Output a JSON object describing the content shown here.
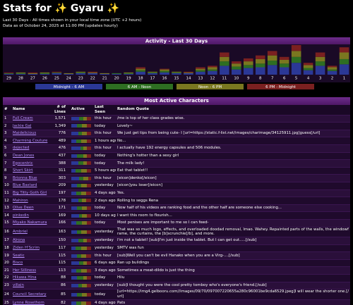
{
  "header": {
    "title": "Stats for ✨ Gyaru ✨",
    "subtitle": [
      "Last 30 Days - All times shown in your local time zone (UTC +2 hours)",
      "Data as of October 24, 2025 at 11:00 PM (updates hourly)"
    ]
  },
  "chart_data": {
    "type": "bar",
    "stacked": true,
    "title": "Activity - Last 30 Days",
    "categories": [
      "29",
      "28",
      "27",
      "26",
      "25",
      "24",
      "23",
      "22",
      "21",
      "20",
      "19",
      "18",
      "17",
      "16",
      "15",
      "14",
      "13",
      "12",
      "11",
      "10",
      "9",
      "8",
      "7",
      "6",
      "5",
      "4",
      "3",
      "2",
      "1"
    ],
    "series": [
      {
        "name": "Midnight - 6 AM",
        "color": "#2b3896",
        "values": [
          1,
          1,
          1,
          1,
          2,
          1,
          2,
          2,
          1,
          1,
          1,
          4,
          2,
          3,
          2,
          2,
          4,
          5,
          12,
          7,
          9,
          10,
          13,
          10,
          16,
          6,
          12,
          5,
          14
        ]
      },
      {
        "name": "6 AM - Noon",
        "color": "#2e6e22",
        "values": [
          1,
          1,
          0,
          1,
          1,
          0,
          1,
          0,
          0,
          1,
          1,
          2,
          1,
          2,
          1,
          0,
          2,
          2,
          6,
          4,
          4,
          5,
          6,
          5,
          8,
          3,
          6,
          2,
          7
        ]
      },
      {
        "name": "Noon - 6 PM",
        "color": "#7a7720",
        "values": [
          0,
          1,
          1,
          1,
          0,
          1,
          1,
          1,
          1,
          0,
          1,
          2,
          1,
          2,
          1,
          1,
          2,
          3,
          6,
          4,
          5,
          6,
          7,
          5,
          8,
          4,
          6,
          3,
          9
        ]
      },
      {
        "name": "6 PM - Midnight",
        "color": "#7a2020",
        "values": [
          1,
          0,
          1,
          0,
          1,
          0,
          0,
          1,
          0,
          0,
          0,
          2,
          0,
          1,
          0,
          1,
          2,
          2,
          6,
          3,
          4,
          5,
          6,
          4,
          8,
          3,
          6,
          2,
          7
        ]
      }
    ]
  },
  "table": {
    "title": "Most Active Characters",
    "columns": [
      "#",
      "Name",
      "# of Lines",
      "Active",
      "Last Seen",
      "Random Quote"
    ],
    "rows": [
      [
        "1",
        "Full Cream",
        "1,571",
        [
          40,
          20,
          20,
          20
        ],
        "this hour",
        "/me is top of her class grades wise."
      ],
      [
        "2",
        "Jackie Gal",
        "1,349",
        [
          30,
          25,
          25,
          20
        ],
        "today",
        "Lovely~"
      ],
      [
        "3",
        "Maidelicious",
        "776",
        [
          35,
          20,
          25,
          20
        ],
        "this hour",
        "We just get tips from being cute- I [url=https://static.f-list.net/images/charimage/34125911.jpg]guess[/url]"
      ],
      [
        "4",
        "Charming Couture",
        "489",
        [
          25,
          25,
          30,
          20
        ],
        "1 hours ago",
        "No..."
      ],
      [
        "5",
        "dejected",
        "476",
        [
          45,
          15,
          20,
          20
        ],
        "this hour",
        "I actually have 192 energy capsules and 506 modules."
      ],
      [
        "6",
        "Dean Jones",
        "437",
        [
          30,
          30,
          20,
          20
        ],
        "today",
        "Nothing's hotter than a sexy girl"
      ],
      [
        "7",
        "Egocentric",
        "388",
        [
          35,
          25,
          20,
          20
        ],
        "today",
        "The milk lady!"
      ],
      [
        "8",
        "Short Skirt",
        "311",
        [
          20,
          30,
          30,
          20
        ],
        "5 hours ago",
        "Eat that tablet!!"
      ],
      [
        "9",
        "Brionna Blue",
        "303",
        [
          40,
          20,
          25,
          15
        ],
        "this hour",
        "[eicon]denko[/eicon]"
      ],
      [
        "10",
        "Blue Bastard",
        "209",
        [
          30,
          20,
          30,
          20
        ],
        "yesterday",
        "[eicon]you loser[/eicon]"
      ],
      [
        "11",
        "Big Titty Goth Girl",
        "197",
        [
          25,
          25,
          25,
          25
        ],
        "4 days ago",
        "Yes."
      ],
      [
        "12",
        "Mahiron",
        "178",
        [
          35,
          20,
          20,
          25
        ],
        "2 days ago",
        "Rolling to seggs Rena"
      ],
      [
        "13",
        "Olive Deen",
        "171",
        [
          30,
          25,
          25,
          20
        ],
        "today",
        "Now half of his videos are ranking food and the other half are someone else cooking..."
      ],
      [
        "14",
        "pinkedin",
        "169",
        [
          40,
          15,
          25,
          20
        ],
        "10 days ago",
        "I want this room to flourish..."
      ],
      [
        "15",
        "Miyako Nakamura",
        "166",
        [
          25,
          30,
          25,
          20
        ],
        "today",
        "Most penises are important to me so I can feed-"
      ],
      [
        "16",
        "Ambriel",
        "163",
        [
          30,
          20,
          30,
          20
        ],
        "yesterday",
        "That was so much logo, effects, and overloaded doodad removal, lmao. Wahey. Repainted parts of the walls, the windowframe, the curtains, the [b]scrunchie[/b], and more."
      ],
      [
        "17",
        "Alrona",
        "150",
        [
          35,
          25,
          20,
          20
        ],
        "yesterday",
        "I'm not a tablet! [sub]I'm just inside the tablet. But I can get out.....[/sub]"
      ],
      [
        "18",
        "Ziden H'Scrim",
        "117",
        [
          20,
          30,
          30,
          20
        ],
        "yesterday",
        "SMTV was fun"
      ],
      [
        "19",
        "Seatic",
        "115",
        [
          30,
          20,
          25,
          25
        ],
        "this hour",
        "[sub]Well you can't be evil Hanako when you are a Virg-....[/sub]"
      ],
      [
        "20",
        "Bisco",
        "115",
        [
          40,
          20,
          20,
          20
        ],
        "6 days ago",
        "Ran up buildings"
      ],
      [
        "21",
        "Her Silliness",
        "113",
        [
          25,
          25,
          30,
          20
        ],
        "3 days ago",
        "Sometimes a meat-dildo is just the thing"
      ],
      [
        "22",
        "Hikawa Hina",
        "88",
        [
          30,
          30,
          20,
          20
        ],
        "today",
        "Hiiu"
      ],
      [
        "23",
        "villain",
        "86",
        [
          35,
          20,
          25,
          20
        ],
        "yesterday",
        "[sub]I thought you were the cool pretty tomboy who's everyone's friend.[/sub]"
      ],
      [
        "24",
        "Council Secretary",
        "85",
        [
          30,
          25,
          25,
          20
        ],
        "today",
        "[url=https://img4.gelbooru.com//images/09/70/097007220655a280c96001be9cda6529.jpeg]I will wear the shorter one.[/url]"
      ],
      [
        "25",
        "Lynne Rosethorn",
        "82",
        [
          25,
          25,
          25,
          25
        ],
        "4 days ago",
        "Pats"
      ]
    ]
  }
}
